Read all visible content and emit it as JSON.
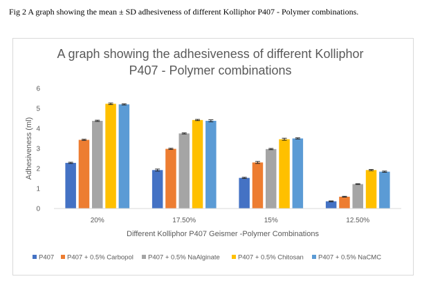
{
  "caption": "Fig 2 A graph showing the mean ± SD adhesiveness of different Kolliphor P407 - Polymer combinations.",
  "chart_data": {
    "type": "bar",
    "title_lines": [
      "A graph showing the adhesiveness of different Kolliphor",
      "P407 - Polymer combinations"
    ],
    "xlabel": "Different Kolliphor P407 Geismer -Polymer Combinations",
    "ylabel": "Adhesiveness (ml)",
    "ylim": [
      0,
      6
    ],
    "yticks": [
      "0",
      "1",
      "2",
      "3",
      "4",
      "5",
      "6"
    ],
    "grid": false,
    "legend_position": "bottom",
    "categories": [
      "20%",
      "17.50%",
      "15%",
      "12.50%"
    ],
    "series": [
      {
        "name": "P407",
        "color": "#4472c4",
        "values": [
          2.28,
          1.92,
          1.53,
          0.36
        ],
        "sd": [
          0.03,
          0.05,
          0.03,
          0.02
        ]
      },
      {
        "name": "P407 + 0.5% Carbopol",
        "color": "#ed7d31",
        "values": [
          3.43,
          2.98,
          2.3,
          0.59
        ],
        "sd": [
          0.03,
          0.03,
          0.05,
          0.02
        ]
      },
      {
        "name": "P407 + 0.5% NaAlginate",
        "color": "#a5a5a5",
        "values": [
          4.38,
          3.75,
          2.97,
          1.22
        ],
        "sd": [
          0.03,
          0.03,
          0.03,
          0.02
        ]
      },
      {
        "name": "P407 + 0.5% Chitosan",
        "color": "#ffc000",
        "values": [
          5.23,
          4.42,
          3.46,
          1.92
        ],
        "sd": [
          0.04,
          0.03,
          0.05,
          0.03
        ]
      },
      {
        "name": "P407 + 0.5% NaCMC",
        "color": "#5b9bd5",
        "values": [
          5.2,
          4.38,
          3.5,
          1.84
        ],
        "sd": [
          0.03,
          0.05,
          0.03,
          0.03
        ]
      }
    ]
  }
}
